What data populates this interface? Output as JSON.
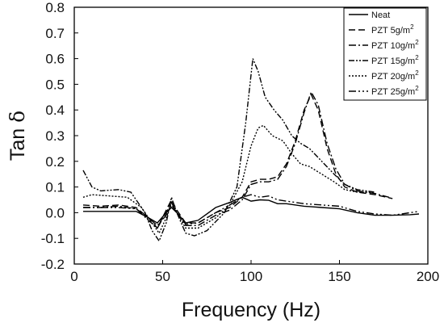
{
  "chart_data": {
    "type": "line",
    "title": "",
    "xlabel": "Frequency (Hz)",
    "ylabel_main": "Tan",
    "ylabel_symbol": "δ",
    "xlim": [
      0,
      200
    ],
    "ylim": [
      -0.2,
      0.8
    ],
    "x_ticks": [
      0,
      50,
      100,
      150,
      200
    ],
    "x_tick_labels": [
      "0",
      "50",
      "100",
      "150",
      "200"
    ],
    "y_ticks": [
      -0.2,
      -0.1,
      0.0,
      0.1,
      0.2,
      0.3,
      0.4,
      0.5,
      0.6,
      0.7,
      0.8
    ],
    "y_tick_labels": [
      "-0.2",
      "-0.1",
      "0.0",
      "0.1",
      "0.2",
      "0.3",
      "0.4",
      "0.5",
      "0.6",
      "0.7",
      "0.8"
    ],
    "grid": false,
    "legend_position": "top-right",
    "series": [
      {
        "name": "Neat",
        "sup": "",
        "dash": "",
        "points": [
          [
            5,
            0.005
          ],
          [
            20,
            0.005
          ],
          [
            35,
            0.005
          ],
          [
            42,
            -0.02
          ],
          [
            47,
            -0.04
          ],
          [
            52,
            0.0
          ],
          [
            55,
            0.02
          ],
          [
            58,
            0.0
          ],
          [
            63,
            -0.04
          ],
          [
            70,
            -0.03
          ],
          [
            80,
            0.02
          ],
          [
            88,
            0.04
          ],
          [
            95,
            0.06
          ],
          [
            100,
            0.045
          ],
          [
            105,
            0.05
          ],
          [
            110,
            0.048
          ],
          [
            115,
            0.035
          ],
          [
            120,
            0.035
          ],
          [
            130,
            0.025
          ],
          [
            140,
            0.02
          ],
          [
            150,
            0.015
          ],
          [
            160,
            0.0
          ],
          [
            170,
            -0.01
          ],
          [
            180,
            -0.01
          ],
          [
            190,
            -0.008
          ],
          [
            195,
            -0.005
          ]
        ]
      },
      {
        "name": "PZT  5g/m",
        "sup": "2",
        "dash": "8,4",
        "points": [
          [
            5,
            0.03
          ],
          [
            15,
            0.025
          ],
          [
            25,
            0.03
          ],
          [
            35,
            0.02
          ],
          [
            42,
            -0.02
          ],
          [
            47,
            -0.06
          ],
          [
            52,
            0.01
          ],
          [
            55,
            0.05
          ],
          [
            58,
            0.01
          ],
          [
            63,
            -0.04
          ],
          [
            70,
            -0.04
          ],
          [
            80,
            0.0
          ],
          [
            88,
            0.02
          ],
          [
            95,
            0.06
          ],
          [
            100,
            0.12
          ],
          [
            105,
            0.13
          ],
          [
            110,
            0.13
          ],
          [
            115,
            0.14
          ],
          [
            120,
            0.19
          ],
          [
            125,
            0.28
          ],
          [
            130,
            0.4
          ],
          [
            134,
            0.46
          ],
          [
            138,
            0.4
          ],
          [
            143,
            0.25
          ],
          [
            148,
            0.15
          ],
          [
            153,
            0.1
          ],
          [
            160,
            0.08
          ],
          [
            170,
            0.07
          ],
          [
            180,
            0.055
          ]
        ]
      },
      {
        "name": "PZT 10g/m",
        "sup": "2",
        "dash": "9,3,2,3",
        "points": [
          [
            5,
            0.02
          ],
          [
            15,
            0.02
          ],
          [
            25,
            0.025
          ],
          [
            35,
            0.015
          ],
          [
            42,
            -0.03
          ],
          [
            47,
            -0.06
          ],
          [
            52,
            0.0
          ],
          [
            55,
            0.04
          ],
          [
            58,
            0.0
          ],
          [
            63,
            -0.05
          ],
          [
            70,
            -0.05
          ],
          [
            80,
            -0.01
          ],
          [
            88,
            0.01
          ],
          [
            95,
            0.05
          ],
          [
            100,
            0.11
          ],
          [
            105,
            0.12
          ],
          [
            110,
            0.12
          ],
          [
            115,
            0.13
          ],
          [
            120,
            0.18
          ],
          [
            125,
            0.27
          ],
          [
            130,
            0.39
          ],
          [
            134,
            0.47
          ],
          [
            138,
            0.42
          ],
          [
            143,
            0.27
          ],
          [
            148,
            0.17
          ],
          [
            153,
            0.11
          ],
          [
            160,
            0.085
          ],
          [
            170,
            0.075
          ],
          [
            178,
            0.06
          ]
        ]
      },
      {
        "name": "PZT 15g/m",
        "sup": "2",
        "dash": "7,2,2,2,2,2",
        "points": [
          [
            5,
            0.165
          ],
          [
            10,
            0.1
          ],
          [
            15,
            0.085
          ],
          [
            25,
            0.09
          ],
          [
            32,
            0.08
          ],
          [
            40,
            0.0
          ],
          [
            44,
            -0.07
          ],
          [
            48,
            -0.11
          ],
          [
            52,
            -0.04
          ],
          [
            55,
            0.06
          ],
          [
            58,
            0.0
          ],
          [
            63,
            -0.08
          ],
          [
            68,
            -0.09
          ],
          [
            75,
            -0.07
          ],
          [
            85,
            0.0
          ],
          [
            92,
            0.1
          ],
          [
            97,
            0.35
          ],
          [
            101,
            0.6
          ],
          [
            104,
            0.55
          ],
          [
            108,
            0.45
          ],
          [
            113,
            0.4
          ],
          [
            118,
            0.36
          ],
          [
            123,
            0.3
          ],
          [
            128,
            0.27
          ],
          [
            133,
            0.25
          ],
          [
            140,
            0.2
          ],
          [
            147,
            0.15
          ],
          [
            153,
            0.11
          ],
          [
            160,
            0.09
          ],
          [
            170,
            0.08
          ]
        ]
      },
      {
        "name": "PZT 20g/m",
        "sup": "2",
        "dash": "2,2",
        "points": [
          [
            5,
            0.06
          ],
          [
            10,
            0.07
          ],
          [
            20,
            0.065
          ],
          [
            30,
            0.06
          ],
          [
            38,
            0.02
          ],
          [
            44,
            -0.04
          ],
          [
            48,
            -0.08
          ],
          [
            52,
            -0.02
          ],
          [
            55,
            0.04
          ],
          [
            58,
            0.0
          ],
          [
            63,
            -0.06
          ],
          [
            70,
            -0.06
          ],
          [
            80,
            -0.02
          ],
          [
            88,
            0.03
          ],
          [
            95,
            0.12
          ],
          [
            100,
            0.26
          ],
          [
            104,
            0.33
          ],
          [
            107,
            0.34
          ],
          [
            112,
            0.3
          ],
          [
            118,
            0.28
          ],
          [
            123,
            0.23
          ],
          [
            128,
            0.19
          ],
          [
            133,
            0.18
          ],
          [
            140,
            0.15
          ],
          [
            147,
            0.12
          ],
          [
            153,
            0.09
          ],
          [
            160,
            0.08
          ],
          [
            170,
            0.08
          ]
        ]
      },
      {
        "name": "PZT 25g/m",
        "sup": "2",
        "dash": "9,3,2,3,2,3",
        "points": [
          [
            5,
            0.02
          ],
          [
            15,
            0.02
          ],
          [
            25,
            0.02
          ],
          [
            35,
            0.015
          ],
          [
            42,
            -0.02
          ],
          [
            47,
            -0.05
          ],
          [
            52,
            -0.01
          ],
          [
            55,
            0.03
          ],
          [
            58,
            0.0
          ],
          [
            63,
            -0.045
          ],
          [
            70,
            -0.04
          ],
          [
            80,
            0.0
          ],
          [
            88,
            0.03
          ],
          [
            95,
            0.06
          ],
          [
            100,
            0.07
          ],
          [
            105,
            0.06
          ],
          [
            110,
            0.065
          ],
          [
            115,
            0.05
          ],
          [
            120,
            0.045
          ],
          [
            130,
            0.035
          ],
          [
            140,
            0.03
          ],
          [
            150,
            0.025
          ],
          [
            160,
            0.005
          ],
          [
            170,
            -0.005
          ],
          [
            180,
            -0.01
          ],
          [
            190,
            0.0
          ],
          [
            195,
            0.005
          ]
        ]
      }
    ]
  }
}
